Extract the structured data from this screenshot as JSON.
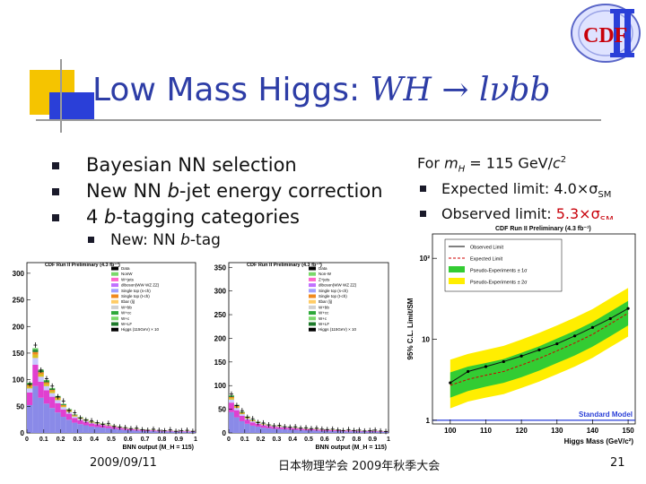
{
  "slide": {
    "title_plain": "Low Mass Higgs: ",
    "title_math": "WH → lνbb",
    "bullets": [
      {
        "pre": "Bayesian NN selection",
        "ital": "",
        "post": ""
      },
      {
        "pre": "New NN ",
        "ital": "b",
        "post": "-jet energy correction"
      },
      {
        "pre": "4 ",
        "ital": "b",
        "post": "-tagging categories"
      }
    ],
    "sub_bullet": {
      "pre": "New: NN ",
      "ital": "b",
      "post": "-tag"
    },
    "side": {
      "header_pre": "For ",
      "header_m": "m",
      "header_sub": "H",
      "header_post": " = 115 GeV/",
      "header_c": "c",
      "header_sup": "2",
      "expected_label": "Expected limit: 4.0×σ",
      "expected_sub": "SM",
      "observed_label": "Observed limit: ",
      "observed_value": "5.3×σ",
      "observed_sub": "SM"
    },
    "footer": {
      "date": "2009/09/11",
      "center": "日本物理学会 2009年秋季大会",
      "page": "21"
    },
    "logo_text": "CDF"
  },
  "chart_data": [
    {
      "type": "bar",
      "title": "CDF Run II Preliminary (4.3 fb⁻¹)",
      "xlabel": "BNN output (M_H = 115)",
      "ylim": [
        0,
        320
      ],
      "yticks": [
        "0",
        "50",
        "100",
        "150",
        "200",
        "250",
        "300"
      ],
      "xticks": [
        "0",
        "0.1",
        "0.2",
        "0.3",
        "0.4",
        "0.5",
        "0.6",
        "0.7",
        "0.8",
        "0.9",
        "1"
      ],
      "legend": [
        "Data",
        "NonW",
        "W+jets",
        "diboson(WW WZ ZZ)",
        "Single top (s-ch)",
        "Single top (t-ch)",
        "ttbar (lj)",
        "W+bb",
        "W+cc",
        "W+c",
        "W+LF",
        "Higgs (115GeV) × 10"
      ],
      "stack_colors": [
        "#f0f0f0",
        "#7ad86a",
        "#2ea83a",
        "#1d7a2a",
        "#f08a1e",
        "#d8c020",
        "#c8c8ff",
        "#e040d0",
        "#8a8ae8"
      ],
      "total": [
        95,
        160,
        120,
        100,
        85,
        70,
        55,
        45,
        35,
        30,
        26,
        22,
        20,
        18,
        16,
        14,
        12,
        10,
        9,
        8,
        7,
        6,
        6,
        5,
        5,
        5,
        4,
        4,
        4,
        4
      ],
      "data": [
        92,
        165,
        118,
        102,
        88,
        68,
        60,
        42,
        38,
        28,
        24,
        23,
        19,
        16,
        18,
        12,
        11,
        10,
        8,
        9,
        6,
        5,
        7,
        5,
        4,
        6,
        3,
        4,
        5,
        3
      ]
    },
    {
      "type": "bar",
      "title": "CDF Run II Preliminary (4.3 fb⁻¹)",
      "xlabel": "BNN output (M_H = 115)",
      "ylim": [
        0,
        360
      ],
      "yticks": [
        "0",
        "50",
        "100",
        "150",
        "200",
        "250",
        "300",
        "350"
      ],
      "xticks": [
        "0",
        "0.1",
        "0.2",
        "0.3",
        "0.4",
        "0.5",
        "0.6",
        "0.7",
        "0.8",
        "0.9",
        "1"
      ],
      "legend": [
        "Data",
        "Non-W",
        "Z+jets",
        "diboson(WW WZ ZZ)",
        "Single top (s-ch)",
        "Single top (t-ch)",
        "ttbar (lj)",
        "W+bb",
        "W+cc",
        "W+c",
        "W+LF",
        "Higgs (115GeV) × 10"
      ],
      "stack_colors": [
        "#f0f0f0",
        "#7ad86a",
        "#2ea83a",
        "#1d7a2a",
        "#f08a1e",
        "#d8c020",
        "#c8c8ff",
        "#e040d0",
        "#8a8ae8"
      ],
      "total": [
        80,
        60,
        45,
        35,
        28,
        24,
        20,
        18,
        16,
        15,
        14,
        13,
        12,
        11,
        10,
        10,
        9,
        8,
        8,
        7,
        7,
        6,
        6,
        6,
        5,
        5,
        5,
        5,
        4,
        4
      ],
      "data": [
        82,
        58,
        47,
        33,
        30,
        22,
        21,
        17,
        15,
        16,
        13,
        12,
        13,
        10,
        11,
        9,
        10,
        8,
        7,
        8,
        6,
        5,
        7,
        5,
        6,
        4,
        5,
        6,
        4,
        3
      ]
    },
    {
      "type": "line",
      "title": "CDF Run II Preliminary (4.3 fb⁻¹)",
      "xlabel": "Higgs Mass (GeV/c²)",
      "ylabel": "95% C.L. Limit/SM",
      "x": [
        100,
        105,
        110,
        115,
        120,
        125,
        130,
        135,
        140,
        145,
        150
      ],
      "xlim": [
        95,
        152
      ],
      "ylim": [
        0.9,
        200
      ],
      "log_y": true,
      "xticks": [
        "100",
        "110",
        "120",
        "130",
        "140",
        "150"
      ],
      "yticks": [
        "1",
        "10",
        "10²"
      ],
      "series": [
        {
          "name": "Observed Limit",
          "values": [
            2.9,
            4.0,
            4.6,
            5.3,
            6.2,
            7.4,
            8.8,
            11.0,
            14.0,
            18.0,
            24.0
          ],
          "color": "#111111"
        },
        {
          "name": "Expected Limit",
          "values": [
            2.7,
            3.2,
            3.6,
            4.0,
            4.8,
            5.8,
            7.2,
            9.0,
            11.5,
            15.5,
            21.0
          ],
          "color": "#d00000"
        }
      ],
      "bands": [
        {
          "name": "Pseudo-Experiments ± 2σ",
          "lo": [
            1.4,
            1.7,
            1.9,
            2.1,
            2.5,
            3.0,
            3.7,
            4.6,
            5.9,
            8.0,
            10.8
          ],
          "hi": [
            5.6,
            6.6,
            7.4,
            8.3,
            9.9,
            12.0,
            14.8,
            18.5,
            23.6,
            32.0,
            43.0
          ],
          "color": "#ffee00"
        },
        {
          "name": "Pseudo-Experiments ± 1σ",
          "lo": [
            1.9,
            2.3,
            2.6,
            2.9,
            3.4,
            4.1,
            5.1,
            6.3,
            8.1,
            10.9,
            14.8
          ],
          "hi": [
            3.9,
            4.6,
            5.1,
            5.7,
            6.8,
            8.2,
            10.2,
            12.7,
            16.3,
            22.0,
            29.8
          ],
          "color": "#33cc33"
        }
      ],
      "reference_label": "Standard Model"
    }
  ]
}
